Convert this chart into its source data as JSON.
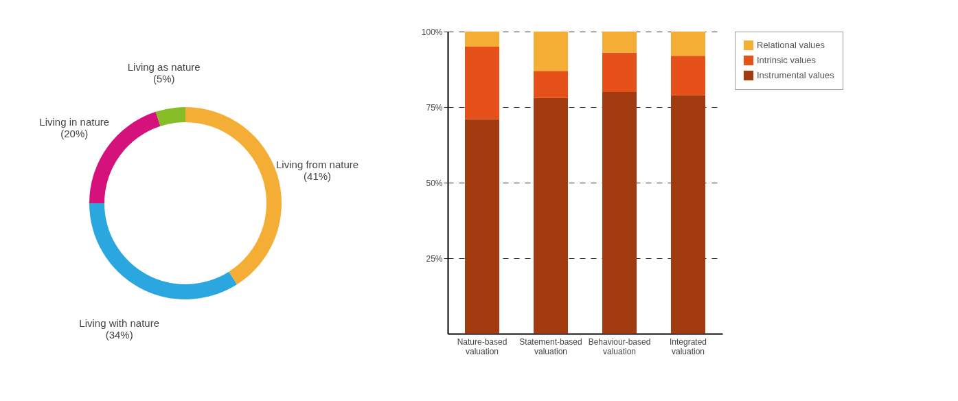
{
  "chart_data": [
    {
      "type": "donut",
      "categories": [
        "Living from nature",
        "Living with nature",
        "Living in nature",
        "Living as nature"
      ],
      "values": [
        41,
        34,
        20,
        5
      ],
      "colors": [
        "#f5ae35",
        "#2aa7df",
        "#d5127b",
        "#86bc25"
      ],
      "value_labels": [
        "(41%)",
        "(34%)",
        "(20%)",
        "(5%)"
      ]
    },
    {
      "type": "bar",
      "stacked": true,
      "categories": [
        "Nature-based valuation",
        "Statement-based valuation",
        "Behaviour-based valuation",
        "Integrated valuation"
      ],
      "series": [
        {
          "name": "Instrumental values",
          "color": "#a23b10",
          "values": [
            71,
            78,
            80,
            79
          ]
        },
        {
          "name": "Intrinsic values",
          "color": "#e65019",
          "values": [
            24,
            9,
            13,
            13
          ]
        },
        {
          "name": "Relational values",
          "color": "#f5ae35",
          "values": [
            5,
            13,
            7,
            8
          ]
        }
      ],
      "ylim": [
        0,
        100
      ],
      "yticks": [
        {
          "value": 25,
          "label": "25%"
        },
        {
          "value": 50,
          "label": "50%"
        },
        {
          "value": 75,
          "label": "75%"
        },
        {
          "value": 100,
          "label": "100%"
        }
      ],
      "grid": "y",
      "legend": "top right"
    }
  ]
}
